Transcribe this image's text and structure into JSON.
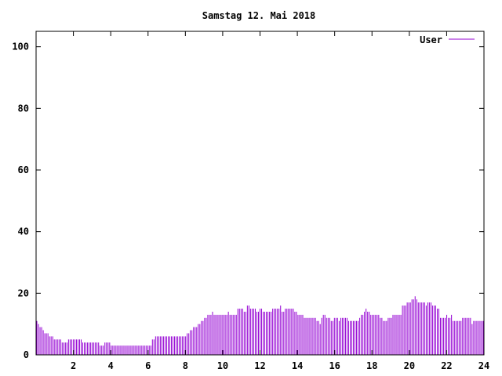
{
  "chart_data": {
    "type": "bar",
    "title": "Samstag 12. Mai 2018",
    "xlabel": "",
    "ylabel": "",
    "xlim": [
      0,
      24
    ],
    "ylim": [
      0,
      105
    ],
    "x_ticks": [
      2,
      4,
      6,
      8,
      10,
      12,
      14,
      16,
      18,
      20,
      22,
      24
    ],
    "y_ticks": [
      0,
      20,
      40,
      60,
      80,
      100
    ],
    "grid": false,
    "legend_position": "top-right",
    "series": [
      {
        "name": "User",
        "color": "#9400d3",
        "values": [
          11,
          10,
          9,
          9,
          8,
          7,
          7,
          7,
          6,
          6,
          6,
          5,
          5,
          5,
          5,
          5,
          4,
          4,
          4,
          4,
          5,
          5,
          5,
          5,
          5,
          5,
          5,
          5,
          5,
          4,
          4,
          4,
          4,
          4,
          4,
          4,
          4,
          4,
          4,
          4,
          3,
          3,
          3,
          4,
          4,
          4,
          4,
          3,
          3,
          3,
          3,
          3,
          3,
          3,
          3,
          3,
          3,
          3,
          3,
          3,
          3,
          3,
          3,
          3,
          3,
          3,
          3,
          3,
          3,
          3,
          3,
          3,
          3,
          5,
          5,
          6,
          6,
          6,
          6,
          6,
          6,
          6,
          6,
          6,
          6,
          6,
          6,
          6,
          6,
          6,
          6,
          6,
          6,
          6,
          6,
          7,
          7,
          8,
          8,
          9,
          9,
          9,
          10,
          10,
          11,
          11,
          12,
          12,
          13,
          13,
          13,
          14,
          13,
          13,
          13,
          13,
          13,
          13,
          13,
          13,
          13,
          14,
          13,
          13,
          13,
          13,
          13,
          15,
          15,
          15,
          15,
          14,
          14,
          16,
          16,
          15,
          15,
          15,
          15,
          14,
          14,
          15,
          15,
          14,
          14,
          14,
          14,
          14,
          14,
          15,
          15,
          15,
          15,
          15,
          16,
          14,
          14,
          15,
          15,
          15,
          15,
          15,
          15,
          14,
          14,
          13,
          13,
          13,
          13,
          12,
          12,
          12,
          12,
          12,
          12,
          12,
          12,
          11,
          11,
          10,
          12,
          13,
          13,
          12,
          12,
          12,
          11,
          11,
          12,
          12,
          12,
          11,
          12,
          12,
          12,
          12,
          12,
          11,
          11,
          11,
          11,
          11,
          11,
          11,
          12,
          13,
          13,
          14,
          15,
          14,
          14,
          13,
          13,
          13,
          13,
          13,
          13,
          12,
          12,
          11,
          11,
          11,
          12,
          12,
          12,
          13,
          13,
          13,
          13,
          13,
          13,
          16,
          16,
          16,
          17,
          17,
          17,
          18,
          18,
          19,
          18,
          17,
          17,
          17,
          17,
          17,
          16,
          17,
          17,
          17,
          16,
          16,
          16,
          15,
          15,
          12,
          12,
          12,
          12,
          13,
          12,
          12,
          13,
          11,
          11,
          11,
          11,
          11,
          11,
          12,
          12,
          12,
          12,
          12,
          12,
          10,
          11,
          11,
          11,
          11,
          11,
          11,
          11
        ]
      }
    ]
  }
}
